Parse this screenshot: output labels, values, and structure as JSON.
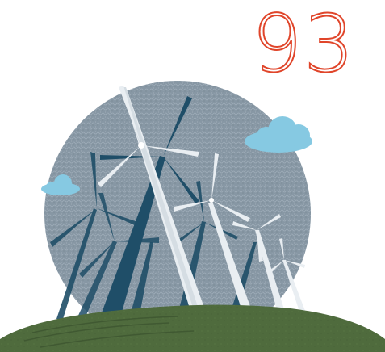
{
  "page_number": "93",
  "colors": {
    "page_number": "#e0452a",
    "sun_disc": "#8797a4",
    "cloud": "#86c9e2",
    "hill": "#4f6b3d",
    "turbine_dark": "#1f4e68",
    "turbine_light": "#e9eef2"
  },
  "icons": [
    "sun-disc-icon",
    "cloud-icon",
    "wind-turbine-icon",
    "hill-icon"
  ]
}
